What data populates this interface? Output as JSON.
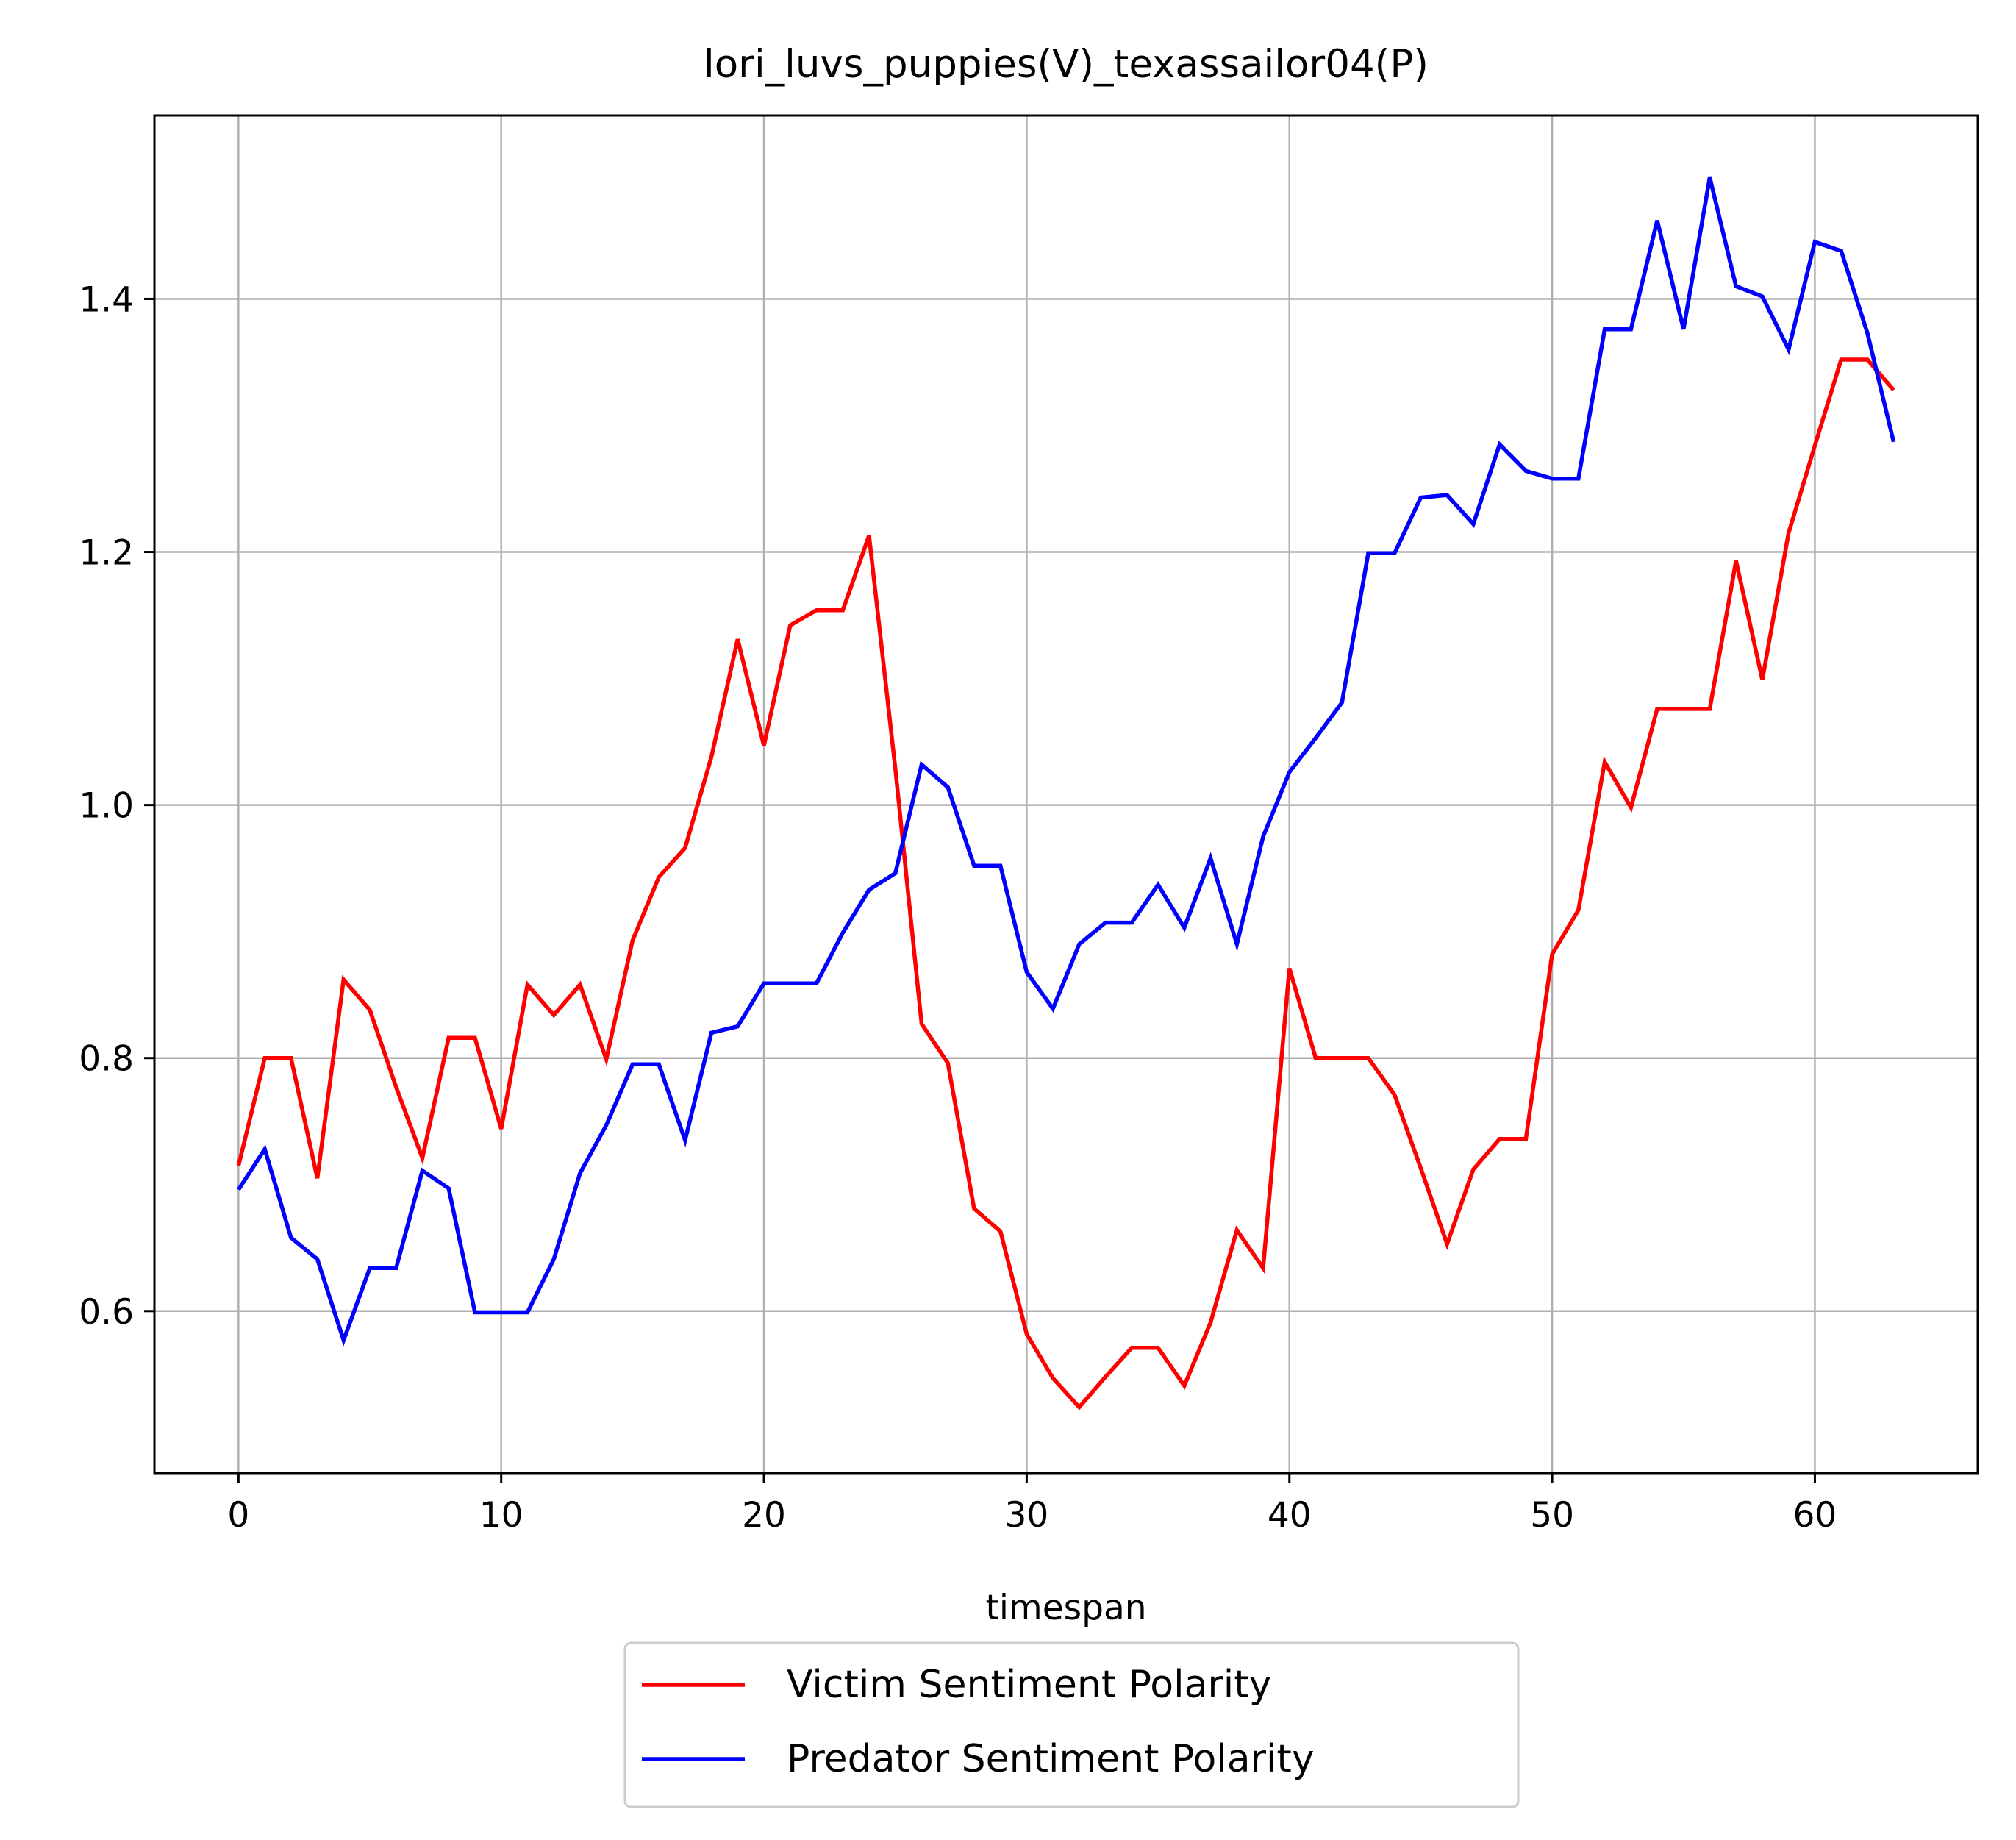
{
  "chart_data": {
    "type": "line",
    "title": "lori_luvs_puppies(V)_texassailor04(P)",
    "xlabel": "timespan",
    "ylabel": "",
    "xlim": [
      -3.2,
      66.2
    ],
    "ylim": [
      0.472,
      1.545
    ],
    "xticks": [
      0,
      10,
      20,
      30,
      40,
      50,
      60
    ],
    "xtick_labels": [
      "0",
      "10",
      "20",
      "30",
      "40",
      "50",
      "60"
    ],
    "yticks": [
      0.6,
      0.8,
      1.0,
      1.2,
      1.4
    ],
    "ytick_labels": [
      "0.6",
      "0.8",
      "1.0",
      "1.2",
      "1.4"
    ],
    "grid": true,
    "legend_position": "below-center",
    "x": [
      0,
      1,
      2,
      3,
      4,
      5,
      6,
      7,
      8,
      9,
      10,
      11,
      12,
      13,
      14,
      15,
      16,
      17,
      18,
      19,
      20,
      21,
      22,
      23,
      24,
      25,
      26,
      27,
      28,
      29,
      30,
      31,
      32,
      33,
      34,
      35,
      36,
      37,
      38,
      39,
      40,
      41,
      42,
      43,
      44,
      45,
      46,
      47,
      48,
      49,
      50,
      51,
      52,
      53,
      54,
      55,
      56,
      57,
      58,
      59,
      60,
      61,
      62,
      63
    ],
    "series": [
      {
        "name": "Victim Sentiment Polarity",
        "color": "#ff0000",
        "values": [
          0.715,
          0.8,
          0.8,
          0.705,
          0.862,
          0.838,
          0.777,
          0.721,
          0.816,
          0.816,
          0.744,
          0.858,
          0.834,
          0.858,
          0.799,
          0.893,
          0.943,
          0.966,
          1.038,
          1.131,
          1.047,
          1.142,
          1.154,
          1.154,
          1.213,
          1.029,
          0.827,
          0.796,
          0.681,
          0.663,
          0.582,
          0.547,
          0.524,
          0.548,
          0.571,
          0.571,
          0.541,
          0.591,
          0.664,
          0.634,
          0.871,
          0.8,
          0.8,
          0.8,
          0.771,
          0.713,
          0.653,
          0.712,
          0.736,
          0.736,
          0.882,
          0.917,
          1.034,
          0.998,
          1.076,
          1.076,
          1.076,
          1.193,
          1.099,
          1.215,
          1.284,
          1.352,
          1.352,
          1.328
        ]
      },
      {
        "name": "Predator Sentiment Polarity",
        "color": "#0000ff",
        "values": [
          0.696,
          0.728,
          0.658,
          0.641,
          0.577,
          0.634,
          0.634,
          0.711,
          0.697,
          0.599,
          0.599,
          0.599,
          0.641,
          0.709,
          0.747,
          0.795,
          0.795,
          0.735,
          0.82,
          0.825,
          0.859,
          0.859,
          0.859,
          0.899,
          0.933,
          0.946,
          1.032,
          1.014,
          0.952,
          0.952,
          0.868,
          0.839,
          0.89,
          0.907,
          0.907,
          0.937,
          0.903,
          0.958,
          0.89,
          0.975,
          1.026,
          1.053,
          1.081,
          1.199,
          1.199,
          1.243,
          1.245,
          1.222,
          1.285,
          1.264,
          1.258,
          1.258,
          1.376,
          1.376,
          1.462,
          1.376,
          1.496,
          1.41,
          1.402,
          1.36,
          1.445,
          1.438,
          1.373,
          1.287
        ]
      }
    ]
  }
}
